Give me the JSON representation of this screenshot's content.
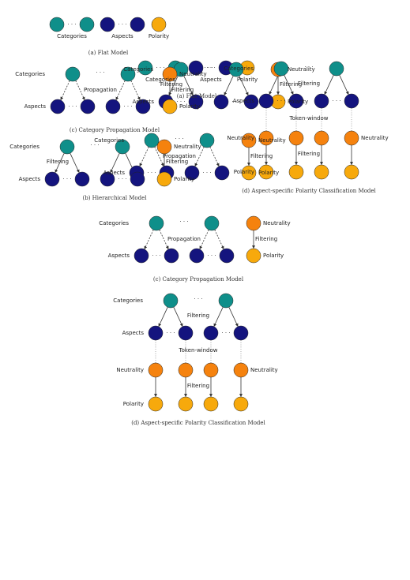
{
  "colors": {
    "category": "#0f8f8a",
    "aspect": "#14147e",
    "neutrality": "#f5820e",
    "polarity": "#f7a90c",
    "edge": "#333333"
  },
  "labels": {
    "categories": "Categories",
    "aspects": "Aspects",
    "polarity": "Polarity",
    "neutrality": "Neutrality",
    "propagation": "Propagation",
    "filtering": "Filtering",
    "token_window": "Token-window",
    "ellipsis": "· · ·"
  },
  "captions": {
    "flat": "(a) Flat Model",
    "hierarchical": "(b) Hierarchical Model",
    "propagation": "(c) Category Propagation Model",
    "aspect_specific": "(d) Aspect-specific Polarity Classification Model"
  }
}
